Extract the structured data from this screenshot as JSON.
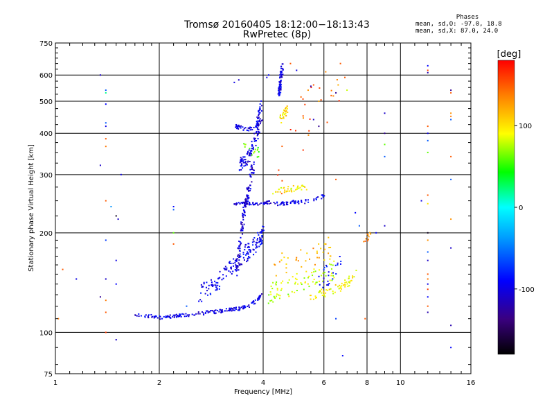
{
  "chart_data": {
    "type": "scatter",
    "title": "Tromsø 20160405 18:12:00−18:13:43",
    "subtitle": "RwPretec (8p)",
    "xlabel": "Frequency [MHz]",
    "ylabel": "Stationary phase Virtual Height [km]",
    "x_scale": "log",
    "y_scale": "log",
    "xlim": [
      1,
      16
    ],
    "ylim": [
      75,
      750
    ],
    "x_ticks": [
      1,
      2,
      4,
      6,
      8,
      10,
      16
    ],
    "x_tick_labels": [
      "1",
      "2",
      "4",
      "6",
      "8",
      "10",
      "16"
    ],
    "y_ticks": [
      75,
      100,
      200,
      300,
      400,
      500,
      600,
      750
    ],
    "y_tick_labels": [
      "75",
      "100",
      "200",
      "300",
      "400",
      "500",
      "600",
      "750"
    ],
    "grid": true,
    "stats": {
      "heading": "Phases",
      "line1": "mean, sd,O: -97.0, 18.8",
      "line2": "mean, sd,X:  87.0, 24.0"
    },
    "colorbar": {
      "label": "[deg]",
      "range": [
        -180,
        180
      ],
      "ticks": [
        100,
        0,
        -100
      ],
      "tick_labels": [
        "100",
        "0",
        "-100"
      ],
      "colormap": "rainbow"
    },
    "traces": [
      {
        "x": [
          1.7,
          1.85,
          2.0,
          2.2,
          2.4,
          2.6,
          2.8,
          3.0,
          3.2,
          3.4,
          3.6,
          3.8,
          3.95
        ],
        "y": [
          113,
          112,
          111,
          112,
          113,
          114,
          115,
          116,
          117,
          118,
          120,
          124,
          130
        ],
        "phase": -100,
        "jitter_y": 0.012,
        "n": 180
      },
      {
        "x": [
          2.6,
          2.9,
          3.1,
          3.3,
          3.5,
          3.7,
          3.9,
          4.0
        ],
        "y": [
          130,
          140,
          150,
          160,
          170,
          180,
          190,
          200
        ],
        "phase": -95,
        "jitter_y": 0.06,
        "n": 180
      },
      {
        "x": [
          3.35,
          3.45,
          3.55,
          3.65,
          3.75
        ],
        "y": [
          150,
          200,
          240,
          280,
          320
        ],
        "phase": -105,
        "jitter_y": 0.04,
        "n": 120
      },
      {
        "x": [
          3.4,
          3.55,
          3.7,
          3.85,
          3.95
        ],
        "y": [
          320,
          330,
          350,
          400,
          500
        ],
        "phase": -100,
        "jitter_y": 0.04,
        "n": 110
      },
      {
        "x": [
          3.3,
          3.45,
          3.6,
          3.8,
          3.95
        ],
        "y": [
          420,
          415,
          410,
          420,
          440
        ],
        "phase": -100,
        "jitter_y": 0.015,
        "n": 60
      },
      {
        "x": [
          3.3,
          3.45,
          3.6,
          3.8,
          4.0,
          4.2
        ],
        "y": [
          245,
          245,
          245,
          245,
          245,
          248
        ],
        "phase": -105,
        "jitter_y": 0.01,
        "n": 60
      },
      {
        "x": [
          4.3,
          4.5,
          4.7,
          4.9,
          5.2,
          5.5,
          5.8,
          6.0
        ],
        "y": [
          245,
          245,
          245,
          248,
          248,
          250,
          255,
          260
        ],
        "phase": -95,
        "jitter_y": 0.012,
        "n": 60
      },
      {
        "x": [
          4.45,
          4.5,
          4.55
        ],
        "y": [
          520,
          580,
          640
        ],
        "phase": -100,
        "jitter_y": 0.03,
        "n": 60
      },
      {
        "x": [
          4.3,
          4.6,
          4.9,
          5.3
        ],
        "y": [
          265,
          270,
          272,
          275
        ],
        "phase": 95,
        "jitter_y": 0.02,
        "n": 40
      },
      {
        "x": [
          4.5,
          4.6,
          4.7
        ],
        "y": [
          440,
          460,
          480
        ],
        "phase": 100,
        "jitter_y": 0.03,
        "n": 25
      },
      {
        "x": [
          3.5,
          3.7,
          3.9
        ],
        "y": [
          380,
          360,
          350
        ],
        "phase": 60,
        "jitter_y": 0.05,
        "n": 15
      },
      {
        "x": [
          4.1,
          4.5,
          5.0,
          5.5,
          6.0,
          6.5
        ],
        "y": [
          130,
          135,
          140,
          145,
          150,
          155
        ],
        "phase": 80,
        "jitter_y": 0.07,
        "n": 80
      },
      {
        "x": [
          5.5,
          6.0,
          6.5,
          7.0,
          7.4
        ],
        "y": [
          128,
          132,
          135,
          140,
          150
        ],
        "phase": 95,
        "jitter_y": 0.03,
        "n": 60
      },
      {
        "x": [
          4.3,
          4.8,
          5.3,
          5.8,
          6.3
        ],
        "y": [
          160,
          165,
          170,
          175,
          180
        ],
        "phase": 120,
        "jitter_y": 0.08,
        "n": 40
      },
      {
        "x": [
          5.8,
          6.3,
          6.8
        ],
        "y": [
          145,
          150,
          160
        ],
        "phase": -90,
        "jitter_y": 0.08,
        "n": 25
      },
      {
        "x": [
          7.8,
          8.0,
          8.2
        ],
        "y": [
          180,
          190,
          200
        ],
        "phase": 140,
        "jitter_y": 0.03,
        "n": 10
      },
      {
        "x": [
          4.3,
          5.0,
          5.8,
          6.8
        ],
        "y": [
          300,
          400,
          500,
          600
        ],
        "phase": 150,
        "jitter_y": 0.25,
        "n": 25
      }
    ],
    "points": [
      {
        "x": 1.35,
        "y": 600,
        "phase": -110
      },
      {
        "x": 1.4,
        "y": 540,
        "phase": -60
      },
      {
        "x": 1.4,
        "y": 530,
        "phase": 20
      },
      {
        "x": 1.4,
        "y": 490,
        "phase": -90
      },
      {
        "x": 1.4,
        "y": 430,
        "phase": -60
      },
      {
        "x": 1.4,
        "y": 420,
        "phase": -100
      },
      {
        "x": 1.4,
        "y": 385,
        "phase": 150
      },
      {
        "x": 1.4,
        "y": 365,
        "phase": 140
      },
      {
        "x": 1.35,
        "y": 320,
        "phase": -110
      },
      {
        "x": 1.55,
        "y": 300,
        "phase": -100
      },
      {
        "x": 1.4,
        "y": 250,
        "phase": 150
      },
      {
        "x": 1.45,
        "y": 240,
        "phase": -40
      },
      {
        "x": 1.5,
        "y": 225,
        "phase": -170
      },
      {
        "x": 1.52,
        "y": 220,
        "phase": -110
      },
      {
        "x": 1.4,
        "y": 190,
        "phase": -70
      },
      {
        "x": 1.5,
        "y": 165,
        "phase": -100
      },
      {
        "x": 1.4,
        "y": 145,
        "phase": -110
      },
      {
        "x": 1.5,
        "y": 140,
        "phase": -90
      },
      {
        "x": 1.35,
        "y": 128,
        "phase": -130
      },
      {
        "x": 1.4,
        "y": 125,
        "phase": 140
      },
      {
        "x": 1.4,
        "y": 115,
        "phase": 150
      },
      {
        "x": 1.4,
        "y": 100,
        "phase": 160
      },
      {
        "x": 1.5,
        "y": 95,
        "phase": -110
      },
      {
        "x": 1.15,
        "y": 145,
        "phase": -100
      },
      {
        "x": 1.05,
        "y": 155,
        "phase": 150
      },
      {
        "x": 1.02,
        "y": 110,
        "phase": 140
      },
      {
        "x": 2.2,
        "y": 240,
        "phase": -90
      },
      {
        "x": 2.2,
        "y": 235,
        "phase": -60
      },
      {
        "x": 2.2,
        "y": 200,
        "phase": 60
      },
      {
        "x": 2.2,
        "y": 185,
        "phase": 150
      },
      {
        "x": 2.4,
        "y": 120,
        "phase": -60
      },
      {
        "x": 3.3,
        "y": 570,
        "phase": -100
      },
      {
        "x": 3.4,
        "y": 580,
        "phase": -110
      },
      {
        "x": 4.1,
        "y": 590,
        "phase": -100
      },
      {
        "x": 4.15,
        "y": 600,
        "phase": -90
      },
      {
        "x": 4.8,
        "y": 650,
        "phase": 150
      },
      {
        "x": 5.0,
        "y": 620,
        "phase": -100
      },
      {
        "x": 5.4,
        "y": 540,
        "phase": 130
      },
      {
        "x": 5.5,
        "y": 555,
        "phase": -120
      },
      {
        "x": 5.6,
        "y": 560,
        "phase": 150
      },
      {
        "x": 5.8,
        "y": 500,
        "phase": 120
      },
      {
        "x": 6.3,
        "y": 520,
        "phase": 150
      },
      {
        "x": 6.5,
        "y": 530,
        "phase": -130
      },
      {
        "x": 6.6,
        "y": 560,
        "phase": 120
      },
      {
        "x": 6.7,
        "y": 650,
        "phase": 150
      },
      {
        "x": 6.9,
        "y": 590,
        "phase": 150
      },
      {
        "x": 7.0,
        "y": 540,
        "phase": 80
      },
      {
        "x": 5.6,
        "y": 440,
        "phase": -110
      },
      {
        "x": 5.8,
        "y": 420,
        "phase": -130
      },
      {
        "x": 6.5,
        "y": 290,
        "phase": 150
      },
      {
        "x": 7.4,
        "y": 230,
        "phase": -90
      },
      {
        "x": 7.6,
        "y": 210,
        "phase": -60
      },
      {
        "x": 9.0,
        "y": 460,
        "phase": -110
      },
      {
        "x": 9.0,
        "y": 400,
        "phase": -130
      },
      {
        "x": 9.0,
        "y": 370,
        "phase": 60
      },
      {
        "x": 9.0,
        "y": 340,
        "phase": -60
      },
      {
        "x": 9.0,
        "y": 210,
        "phase": -110
      },
      {
        "x": 8.5,
        "y": 200,
        "phase": -90
      },
      {
        "x": 6.5,
        "y": 110,
        "phase": -70
      },
      {
        "x": 6.8,
        "y": 85,
        "phase": -90
      },
      {
        "x": 7.9,
        "y": 110,
        "phase": 150
      },
      {
        "x": 12.0,
        "y": 640,
        "phase": -90
      },
      {
        "x": 12.0,
        "y": 620,
        "phase": 160
      },
      {
        "x": 12.0,
        "y": 610,
        "phase": -120
      },
      {
        "x": 12.0,
        "y": 420,
        "phase": 150
      },
      {
        "x": 12.0,
        "y": 400,
        "phase": -100
      },
      {
        "x": 12.0,
        "y": 380,
        "phase": -60
      },
      {
        "x": 12.0,
        "y": 350,
        "phase": 60
      },
      {
        "x": 12.0,
        "y": 260,
        "phase": 150
      },
      {
        "x": 12.0,
        "y": 245,
        "phase": 100
      },
      {
        "x": 11.5,
        "y": 250,
        "phase": -100
      },
      {
        "x": 12.0,
        "y": 200,
        "phase": -170
      },
      {
        "x": 12.0,
        "y": 190,
        "phase": 130
      },
      {
        "x": 12.0,
        "y": 175,
        "phase": -60
      },
      {
        "x": 12.0,
        "y": 165,
        "phase": -110
      },
      {
        "x": 12.0,
        "y": 150,
        "phase": 150
      },
      {
        "x": 12.0,
        "y": 145,
        "phase": 140
      },
      {
        "x": 12.0,
        "y": 140,
        "phase": -100
      },
      {
        "x": 12.0,
        "y": 135,
        "phase": 160
      },
      {
        "x": 12.0,
        "y": 128,
        "phase": -90
      },
      {
        "x": 12.0,
        "y": 120,
        "phase": 150
      },
      {
        "x": 12.0,
        "y": 115,
        "phase": -120
      },
      {
        "x": 14.0,
        "y": 540,
        "phase": -130
      },
      {
        "x": 14.0,
        "y": 530,
        "phase": 150
      },
      {
        "x": 14.0,
        "y": 460,
        "phase": 130
      },
      {
        "x": 14.0,
        "y": 450,
        "phase": 140
      },
      {
        "x": 14.0,
        "y": 440,
        "phase": -60
      },
      {
        "x": 14.0,
        "y": 340,
        "phase": 150
      },
      {
        "x": 14.0,
        "y": 290,
        "phase": -60
      },
      {
        "x": 14.0,
        "y": 220,
        "phase": 130
      },
      {
        "x": 14.0,
        "y": 180,
        "phase": -110
      },
      {
        "x": 14.0,
        "y": 105,
        "phase": -120
      },
      {
        "x": 14.0,
        "y": 90,
        "phase": -90
      }
    ]
  }
}
